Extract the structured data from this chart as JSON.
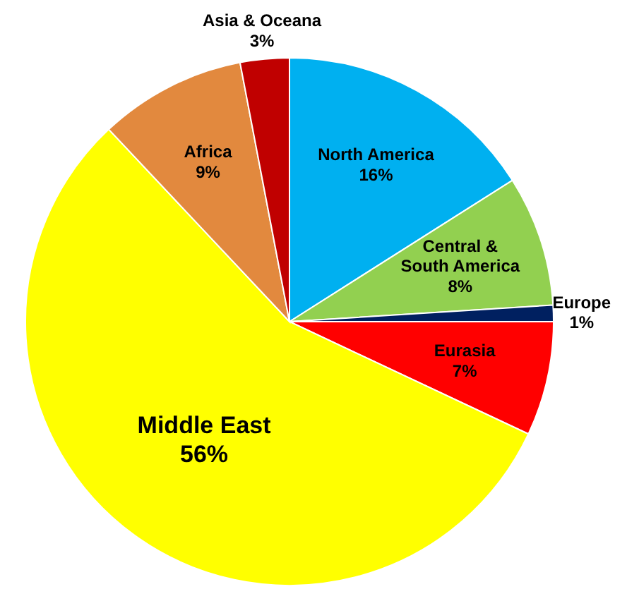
{
  "chart_data": {
    "type": "pie",
    "categories": [
      "North America",
      "Central & South America",
      "Europe",
      "Eurasia",
      "Middle East",
      "Africa",
      "Asia & Oceana"
    ],
    "values": [
      16,
      8,
      1,
      7,
      56,
      9,
      3
    ],
    "value_labels": [
      "16%",
      "8%",
      "1%",
      "7%",
      "56%",
      "9%",
      "3%"
    ],
    "colors": [
      "#00b0f0",
      "#92d050",
      "#002060",
      "#ff0000",
      "#ffff00",
      "#e2893e",
      "#c00000"
    ]
  }
}
